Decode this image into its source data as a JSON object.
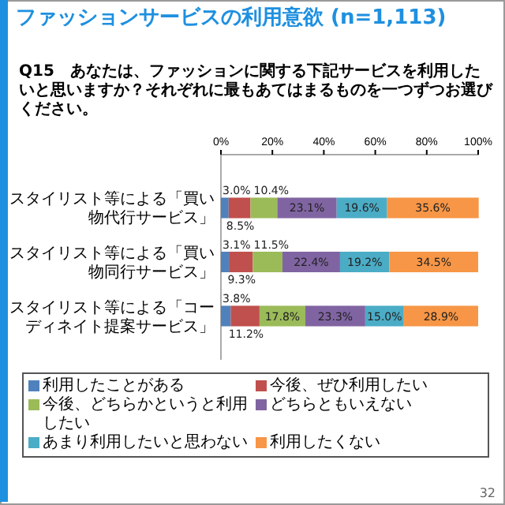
{
  "chart_data": {
    "type": "bar",
    "orientation": "horizontal",
    "stacked": true,
    "title": "ファッションサービスの利用意欲",
    "subtitle": "(n=1,113)",
    "annotations": [
      "Q15　あなたは、ファッションに関する下記サービスを利用したいと思いますか？それぞれに最もあてはまるものを一つずつお選びください。",
      "32"
    ],
    "categories": [
      "スタイリスト等による「買い物代行サービス」",
      "スタイリスト等による「買い物同行サービス」",
      "スタイリスト等による「コーディネイト提案サービス」"
    ],
    "xlim": [
      0,
      100
    ],
    "xticks": [
      {
        "value": 0,
        "label": "0%"
      },
      {
        "value": 20,
        "label": "20%"
      },
      {
        "value": 40,
        "label": "40%"
      },
      {
        "value": 60,
        "label": "60%"
      },
      {
        "value": 80,
        "label": "80%"
      },
      {
        "value": 100,
        "label": "100%"
      }
    ],
    "legend": "bottom",
    "series": [
      {
        "name": "利用したことがある",
        "color": "#4f81bd",
        "values": [
          3.0,
          3.1,
          3.8
        ],
        "value_labels": [
          "3.0%",
          "3.1%",
          "3.8%"
        ]
      },
      {
        "name": "今後、ぜひ利用したい",
        "color": "#c0504d",
        "values": [
          8.5,
          9.3,
          11.2
        ],
        "value_labels": [
          "8.5%",
          "9.3%",
          "11.2%"
        ]
      },
      {
        "name": "今後、どちらかというと利用したい",
        "color": "#9bbb59",
        "values": [
          10.4,
          11.5,
          17.8
        ],
        "value_labels": [
          "10.4%",
          "11.5%",
          "17.8%"
        ]
      },
      {
        "name": "どちらともいえない",
        "color": "#8064a2",
        "values": [
          23.1,
          22.4,
          23.3
        ],
        "value_labels": [
          "23.1%",
          "22.4%",
          "23.3%"
        ]
      },
      {
        "name": "あまり利用したいと思わない",
        "color": "#4bacc6",
        "values": [
          19.6,
          19.2,
          15.0
        ],
        "value_labels": [
          "19.6%",
          "19.2%",
          "15.0%"
        ]
      },
      {
        "name": "利用したくない",
        "color": "#f79646",
        "values": [
          35.6,
          34.5,
          28.9
        ],
        "value_labels": [
          "35.6%",
          "34.5%",
          "28.9%"
        ]
      }
    ]
  }
}
